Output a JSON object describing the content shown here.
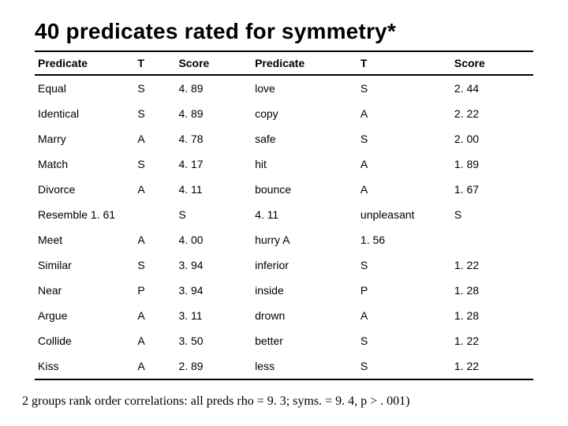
{
  "title": "40 predicates rated for symmetry*",
  "columns": [
    "Predicate",
    "T",
    "Score",
    "Predicate",
    "T",
    "Score"
  ],
  "rows": [
    [
      "Equal",
      "S",
      "4. 89",
      " love",
      "S",
      "2. 44"
    ],
    [
      "Identical",
      "S",
      "4. 89",
      "copy",
      "A",
      "2. 22"
    ],
    [
      "Marry",
      "A",
      "4. 78",
      "safe",
      "S",
      "2. 00"
    ],
    [
      "Match",
      "S",
      "4. 17",
      "hit",
      "A",
      "1. 89"
    ],
    [
      "Divorce",
      "A",
      "4. 11",
      " bounce",
      "A",
      "1. 67"
    ],
    [
      "Resemble 1. 61",
      "",
      "      S",
      "4. 11",
      "unpleasant",
      "S"
    ],
    [
      "Meet",
      "A",
      "4. 00",
      " hurry A",
      "1. 56",
      ""
    ],
    [
      "Similar",
      "S",
      "3. 94",
      " inferior",
      "S",
      "1. 22"
    ],
    [
      "Near",
      "P",
      "3. 94",
      "inside",
      "P",
      "1. 28"
    ],
    [
      "Argue",
      "A",
      "3. 11",
      " drown",
      "A",
      "1. 28"
    ],
    [
      "Collide",
      "A",
      "3. 50",
      "better",
      "S",
      "1. 22"
    ],
    [
      "Kiss",
      "A",
      "2. 89",
      "less",
      "S",
      "1. 22"
    ]
  ],
  "footnote": "2 groups rank order correlations:  all preds rho = 9. 3; syms. = 9. 4, p > . 001)"
}
